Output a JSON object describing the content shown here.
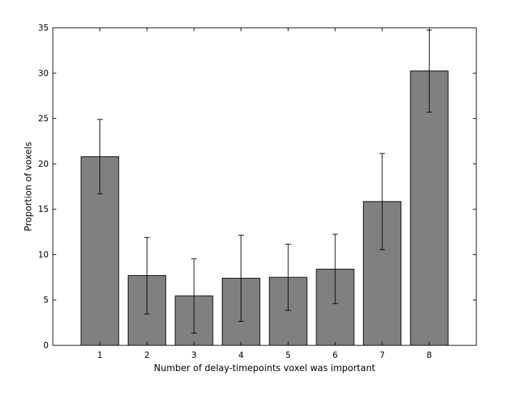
{
  "chart_data": {
    "type": "bar",
    "title": "",
    "xlabel": "Number of delay-timepoints voxel was important",
    "ylabel": "Proportion of voxels",
    "categories": [
      "1",
      "2",
      "3",
      "4",
      "5",
      "6",
      "7",
      "8"
    ],
    "values": [
      20.8,
      7.7,
      5.45,
      7.4,
      7.5,
      8.4,
      15.85,
      30.25
    ],
    "error_low": [
      16.7,
      3.45,
      1.35,
      2.65,
      3.85,
      4.6,
      10.55,
      25.7
    ],
    "error_high": [
      24.9,
      11.9,
      9.55,
      12.15,
      11.15,
      12.25,
      21.15,
      34.75
    ],
    "ylim": [
      0,
      35
    ],
    "xlim": [
      0,
      9
    ],
    "yticks": [
      "0",
      "5",
      "10",
      "15",
      "20",
      "25",
      "30",
      "35"
    ],
    "grid": false,
    "bar_color": "#808080",
    "edge_color": "#000000",
    "error_color": "#000000"
  }
}
